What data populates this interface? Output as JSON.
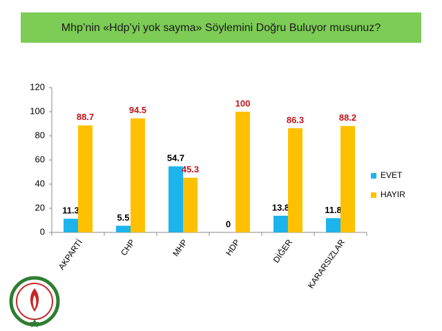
{
  "chart_data": {
    "type": "bar",
    "title": "Mhp’nin «Hdp’yi yok sayma» Söylemini Doğru Buluyor musunuz?",
    "categories": [
      "AKPARTİ",
      "CHP",
      "MHP",
      "HDP",
      "DİĞER",
      "KARARSIZLAR"
    ],
    "series": [
      {
        "name": "EVET",
        "color": "#1cb4ec",
        "label_color": "#000000",
        "values": [
          11.3,
          5.5,
          54.7,
          0,
          13.8,
          11.8
        ]
      },
      {
        "name": "HAYIR",
        "color": "#ffc000",
        "label_color": "#c0141c",
        "values": [
          88.7,
          94.5,
          45.3,
          100,
          86.3,
          88.2
        ]
      }
    ],
    "ylim": [
      0,
      120
    ],
    "yticks": [
      0,
      20,
      40,
      60,
      80,
      100,
      120
    ],
    "grid": false,
    "legend": "right"
  }
}
